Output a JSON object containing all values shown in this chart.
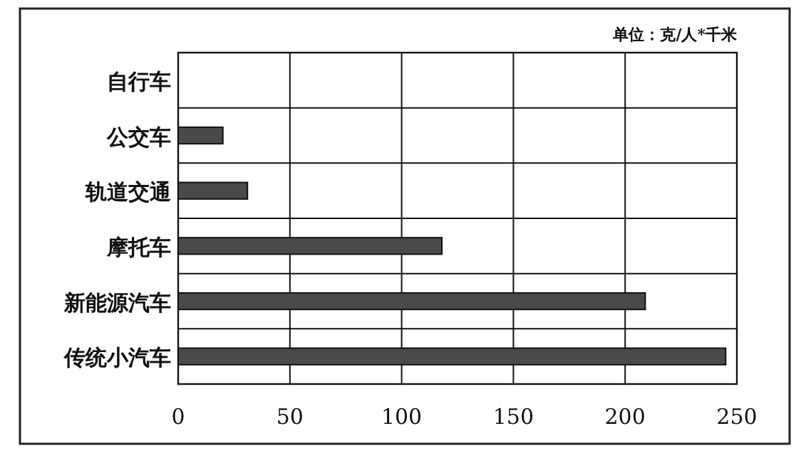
{
  "chart_data": {
    "type": "bar",
    "orientation": "horizontal",
    "annotations": [
      "单位：克/人*千米"
    ],
    "categories": [
      "自行车",
      "公交车",
      "轨道交通",
      "摩托车",
      "新能源汽车",
      "传统小汽车"
    ],
    "values": [
      0,
      20,
      31,
      118,
      209,
      245
    ],
    "color": "#4a4a4a",
    "xlim": [
      0,
      250
    ],
    "xticks": [
      0,
      50,
      100,
      150,
      200,
      250
    ],
    "grid": true
  }
}
